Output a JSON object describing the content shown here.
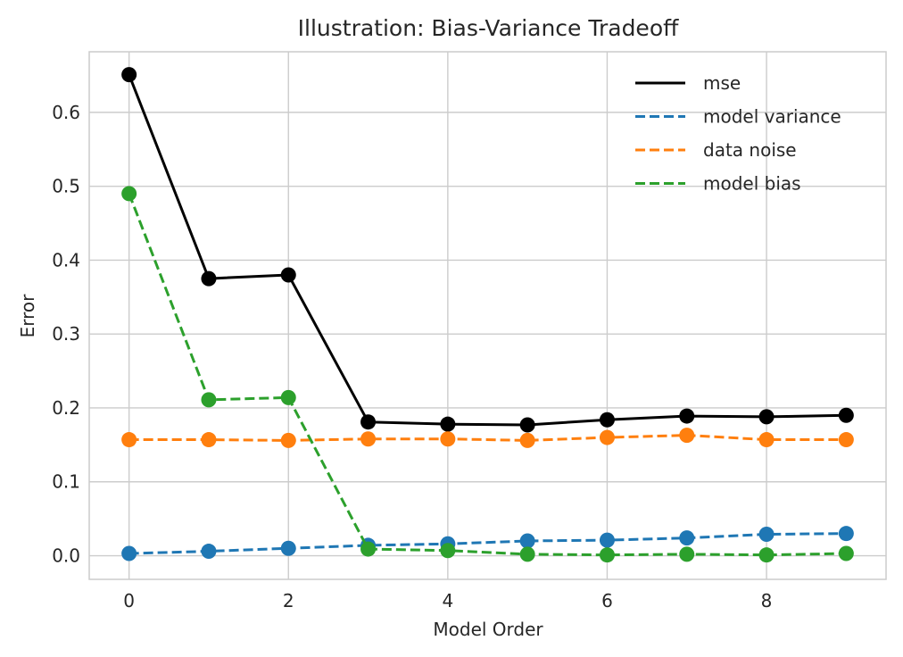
{
  "chart_data": {
    "type": "line",
    "title": "Illustration: Bias-Variance Tradeoff",
    "xlabel": "Model Order",
    "ylabel": "Error",
    "xlim": [
      -0.5,
      9.5
    ],
    "ylim": [
      -0.032,
      0.682
    ],
    "xticks": [
      0,
      2,
      4,
      6,
      8
    ],
    "yticks": [
      0.0,
      0.1,
      0.2,
      0.3,
      0.4,
      0.5,
      0.6
    ],
    "ytick_labels": [
      "0.0",
      "0.1",
      "0.2",
      "0.3",
      "0.4",
      "0.5",
      "0.6"
    ],
    "grid": true,
    "legend_position": "top-right",
    "x": [
      0,
      1,
      2,
      3,
      4,
      5,
      6,
      7,
      8,
      9
    ],
    "series": [
      {
        "name": "mse",
        "color": "#000000",
        "dash": "solid",
        "values": [
          0.651,
          0.375,
          0.38,
          0.181,
          0.178,
          0.177,
          0.184,
          0.189,
          0.188,
          0.19
        ]
      },
      {
        "name": "model variance",
        "color": "#1f77b4",
        "dash": "dashed",
        "values": [
          0.003,
          0.006,
          0.01,
          0.014,
          0.016,
          0.02,
          0.021,
          0.024,
          0.029,
          0.03
        ]
      },
      {
        "name": "data noise",
        "color": "#ff7f0e",
        "dash": "dashed",
        "values": [
          0.157,
          0.157,
          0.156,
          0.158,
          0.158,
          0.156,
          0.16,
          0.163,
          0.157,
          0.157
        ]
      },
      {
        "name": "model bias",
        "color": "#2ca02c",
        "dash": "dashed",
        "values": [
          0.49,
          0.211,
          0.214,
          0.009,
          0.007,
          0.002,
          0.001,
          0.002,
          0.001,
          0.003
        ]
      }
    ]
  }
}
